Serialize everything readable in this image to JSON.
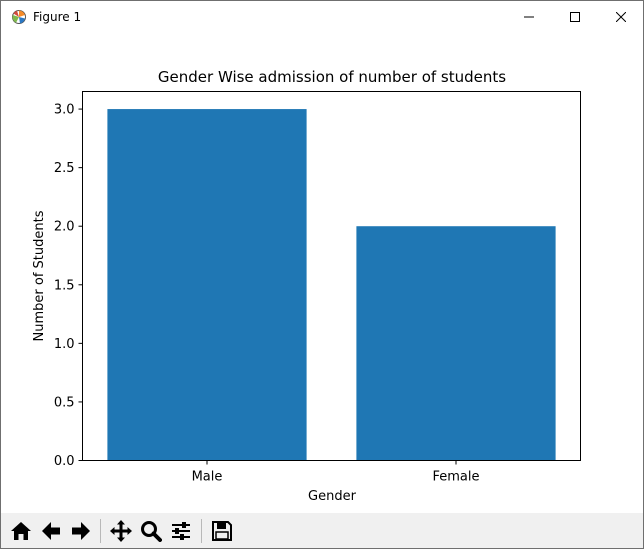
{
  "window": {
    "title": "Figure 1"
  },
  "toolbar": {
    "buttons": [
      "home-icon",
      "back-arrow-icon",
      "forward-arrow-icon",
      "pan-icon",
      "zoom-icon",
      "configure-subplots-icon",
      "save-icon"
    ]
  },
  "colors": {
    "bar": "#1f77b4",
    "toolbar_bg": "#f0f0f0"
  },
  "chart_data": {
    "type": "bar",
    "title": "Gender Wise admission of number of students",
    "xlabel": "Gender",
    "ylabel": "Number of Students",
    "categories": [
      "Male",
      "Female"
    ],
    "values": [
      3,
      2
    ],
    "ylim": [
      0,
      3.15
    ],
    "yticks": [
      "0.0",
      "0.5",
      "1.0",
      "1.5",
      "2.0",
      "2.5",
      "3.0"
    ],
    "grid": false,
    "legend": "none"
  }
}
